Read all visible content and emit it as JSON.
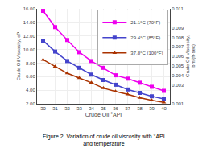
{
  "chart_data": {
    "type": "line",
    "caption": "Figure 2. Variation of crude oil viscosity with °API\nand temperature",
    "x_label": "Crude Oil °API",
    "y_label": "Crude Oil Viscosity, cP",
    "y2_label": "Crude Oil Viscosity,\nlbm/(ft·sec)",
    "x": [
      30,
      31,
      32,
      33,
      34,
      35,
      36,
      37,
      38,
      39,
      40
    ],
    "series": [
      {
        "name": "21.1°C (70°F)",
        "color": "#ee00ee",
        "marker": "square",
        "values": [
          15.7,
          13.3,
          11.4,
          9.6,
          8.3,
          7.3,
          6.2,
          5.7,
          5.1,
          4.5,
          3.9
        ]
      },
      {
        "name": "29.4°C (85°F)",
        "color": "#4444cc",
        "marker": "square",
        "values": [
          11.3,
          9.7,
          8.3,
          7.3,
          6.3,
          5.5,
          4.8,
          4.1,
          3.6,
          3.1,
          2.7
        ]
      },
      {
        "name": "37.8°C (100°F)",
        "color": "#aa3300",
        "marker": "triangle",
        "values": [
          8.5,
          7.5,
          6.5,
          5.8,
          5.1,
          4.3,
          3.8,
          3.4,
          2.9,
          2.5,
          2.2
        ]
      }
    ],
    "xlim": [
      29.5,
      40.5
    ],
    "xticks": [
      30,
      31,
      32,
      33,
      34,
      35,
      36,
      37,
      38,
      39,
      40
    ],
    "ylim": [
      2.0,
      16.0
    ],
    "yticks": [
      {
        "value": 2.0,
        "label": "2.00"
      },
      {
        "value": 4.0,
        "label": "4.00"
      },
      {
        "value": 6.0,
        "label": "6.00"
      },
      {
        "value": 8.0,
        "label": "8.00"
      },
      {
        "value": 10.0,
        "label": "10.00"
      },
      {
        "value": 12.0,
        "label": "12.00"
      },
      {
        "value": 14.0,
        "label": "14.00"
      },
      {
        "value": 16.0,
        "label": "16.00"
      }
    ],
    "y2lim": [
      0.001,
      0.011
    ],
    "y2ticks": [
      0.001,
      0.003,
      0.004,
      0.005,
      0.006,
      0.007,
      0.008,
      0.009,
      0.011
    ],
    "grid": true,
    "legend": "upper right"
  }
}
